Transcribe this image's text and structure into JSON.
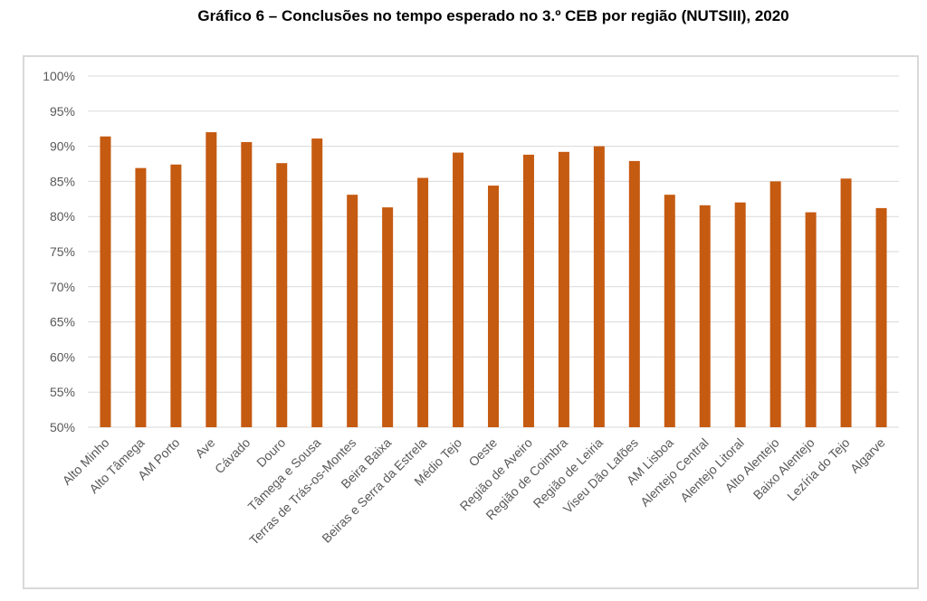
{
  "chart_data": {
    "type": "bar",
    "title": "Gráfico 6 – Conclusões no tempo esperado no 3.º CEB por região (NUTSIII), 2020",
    "xlabel": "",
    "ylabel": "",
    "ylim": [
      50,
      100
    ],
    "ytick_step": 5,
    "ytick_suffix": "%",
    "grid": true,
    "legend": "none",
    "bar_color": "#C55A11",
    "categories": [
      "Alto Minho",
      "Alto Tâmega",
      "AM Porto",
      "Ave",
      "Cávado",
      "Douro",
      "Tâmega e Sousa",
      "Terras de Trás-os-Montes",
      "Beira Baixa",
      "Beiras e Serra da Estrela",
      "Médio Tejo",
      "Oeste",
      "Região de Aveiro",
      "Região de Coimbra",
      "Região de Leiria",
      "Viseu Dão Lafões",
      "AM Lisboa",
      "Alentejo Central",
      "Alentejo Litoral",
      "Alto Alentejo",
      "Baixo Alentejo",
      "Lezíria do Tejo",
      "Algarve"
    ],
    "values": [
      91.4,
      86.9,
      87.4,
      92.0,
      90.6,
      87.6,
      91.1,
      83.1,
      81.3,
      85.5,
      89.1,
      84.4,
      88.8,
      89.2,
      90.0,
      87.9,
      83.1,
      81.6,
      82.0,
      85.0,
      80.6,
      85.4,
      81.2
    ]
  }
}
